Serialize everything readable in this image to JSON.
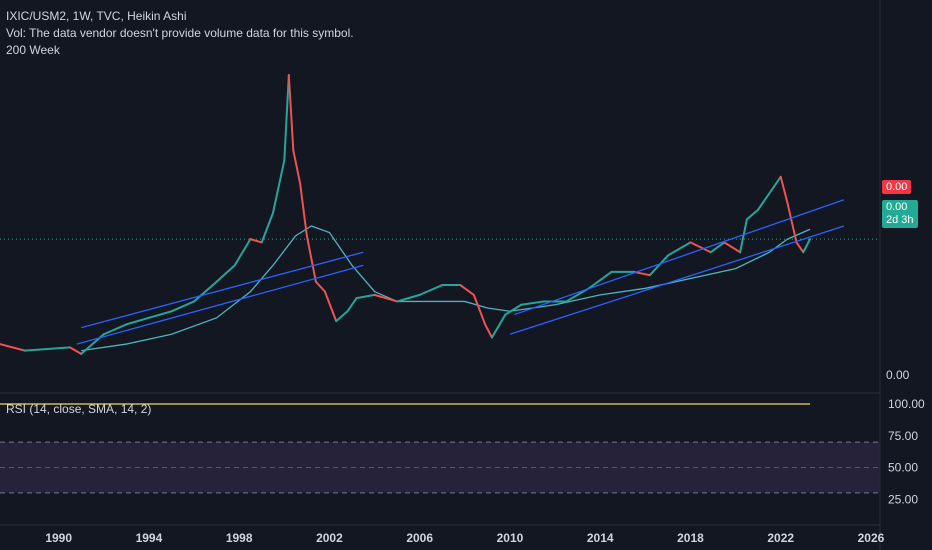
{
  "header": {
    "symbol_line": "IXIC/USM2, 1W, TVC, Heikin Ashi",
    "volume_line": "Vol: The data vendor doesn't provide volume data for this symbol.",
    "ma_line": "200 Week"
  },
  "price_tags": {
    "red_value": "0.00",
    "green_value": "0.00",
    "countdown": "2d 3h",
    "bottom_value": "0.00"
  },
  "rsi_panel": {
    "label": "RSI (14, close, SMA, 14, 2)",
    "ticks": [
      "100.00",
      "75.00",
      "50.00",
      "25.00"
    ],
    "upper_band": 70,
    "lower_band": 30,
    "mid_line": 50,
    "current": 100
  },
  "colors": {
    "background": "#131722",
    "up": "#26a69a",
    "down": "#ef5350",
    "ma": "#4fb3bf",
    "channel": "#2962ff",
    "rsi_line": "#f5d76e",
    "rsi_band_fill": "#2a2540"
  },
  "chart_data": {
    "type": "line",
    "title": "IXIC/USM2, 1W, TVC, Heikin Ashi",
    "x_ticks": [
      "1990",
      "1994",
      "1998",
      "2002",
      "2006",
      "2010",
      "2014",
      "2018",
      "2022",
      "2026"
    ],
    "xlim": [
      1987.4,
      2026.4
    ],
    "ylim": [
      0,
      1.0
    ],
    "price_x": [
      1987.4,
      1988.5,
      1989.5,
      1990.5,
      1991.0,
      1992.0,
      1993.0,
      1994.0,
      1995.0,
      1996.0,
      1997.0,
      1997.8,
      1998.5,
      1999.0,
      1999.5,
      2000.0,
      2000.2,
      2000.4,
      2000.7,
      2001.0,
      2001.4,
      2001.8,
      2002.3,
      2002.8,
      2003.2,
      2004.0,
      2005.0,
      2006.0,
      2007.0,
      2007.8,
      2008.4,
      2008.9,
      2009.2,
      2009.8,
      2010.5,
      2011.5,
      2012.5,
      2013.5,
      2014.5,
      2015.5,
      2016.2,
      2017.0,
      2018.0,
      2018.9,
      2019.5,
      2020.2,
      2020.5,
      2021.0,
      2021.7,
      2022.0,
      2022.3,
      2022.7,
      2023.0,
      2023.3
    ],
    "price_y": [
      0.14,
      0.12,
      0.125,
      0.13,
      0.11,
      0.17,
      0.2,
      0.22,
      0.24,
      0.27,
      0.33,
      0.38,
      0.46,
      0.45,
      0.54,
      0.7,
      0.96,
      0.73,
      0.63,
      0.47,
      0.33,
      0.3,
      0.21,
      0.24,
      0.28,
      0.29,
      0.27,
      0.29,
      0.32,
      0.32,
      0.29,
      0.2,
      0.16,
      0.23,
      0.26,
      0.27,
      0.27,
      0.31,
      0.36,
      0.36,
      0.35,
      0.41,
      0.45,
      0.42,
      0.45,
      0.42,
      0.52,
      0.55,
      0.62,
      0.65,
      0.57,
      0.45,
      0.42,
      0.46
    ],
    "ma_x": [
      1991.0,
      1993.0,
      1995.0,
      1997.0,
      1998.5,
      1999.5,
      2000.5,
      2001.2,
      2002.0,
      2003.0,
      2004.0,
      2005.0,
      2006.0,
      2007.0,
      2008.0,
      2009.0,
      2010.0,
      2012.0,
      2014.0,
      2016.0,
      2018.0,
      2020.0,
      2021.5,
      2022.3,
      2023.3
    ],
    "ma_y": [
      0.12,
      0.14,
      0.17,
      0.22,
      0.3,
      0.38,
      0.47,
      0.5,
      0.48,
      0.38,
      0.3,
      0.27,
      0.27,
      0.27,
      0.27,
      0.25,
      0.24,
      0.26,
      0.29,
      0.31,
      0.34,
      0.37,
      0.42,
      0.46,
      0.49
    ],
    "channels": [
      {
        "x": [
          1991.0,
          2003.5
        ],
        "y": [
          0.19,
          0.42
        ]
      },
      {
        "x": [
          1990.8,
          2003.5
        ],
        "y": [
          0.14,
          0.38
        ]
      },
      {
        "x": [
          2010.2,
          2024.8
        ],
        "y": [
          0.23,
          0.58
        ]
      },
      {
        "x": [
          2010.0,
          2024.8
        ],
        "y": [
          0.17,
          0.5
        ]
      }
    ],
    "last_value_line": 0.46
  }
}
